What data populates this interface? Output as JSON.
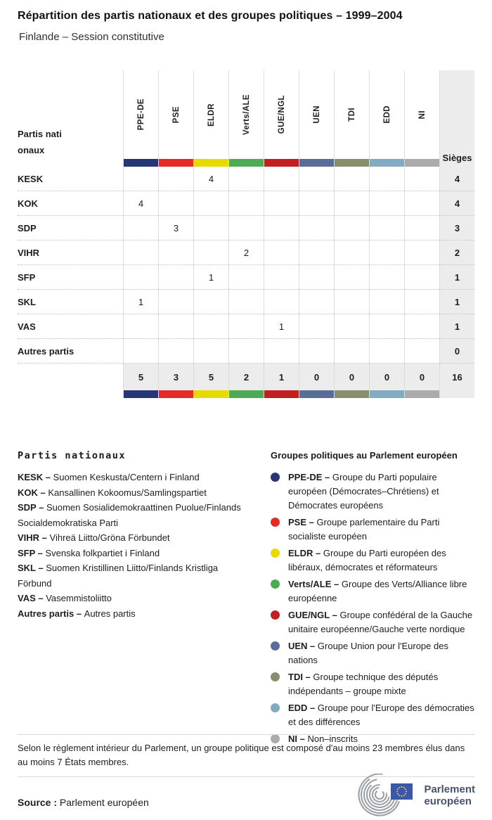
{
  "title": "Répartition des partis nationaux et des groupes politiques – 1999–2004",
  "subtitle": "Finlande – Session constitutive",
  "table": {
    "corner_label": "Partis nationaux",
    "seats_label": "Sièges",
    "groups": [
      {
        "code": "PPE-DE",
        "color": "#283577"
      },
      {
        "code": "PSE",
        "color": "#e32b28"
      },
      {
        "code": "ELDR",
        "color": "#e8da00"
      },
      {
        "code": "Verts/ALE",
        "color": "#4dab54"
      },
      {
        "code": "GUE/NGL",
        "color": "#c21f20"
      },
      {
        "code": "UEN",
        "color": "#5a6c99"
      },
      {
        "code": "TDI",
        "color": "#878d6d"
      },
      {
        "code": "EDD",
        "color": "#82aac1"
      },
      {
        "code": "NI",
        "color": "#ababab"
      }
    ],
    "rows": [
      {
        "party": "KESK",
        "values": [
          "",
          "",
          "4",
          "",
          "",
          "",
          "",
          "",
          ""
        ],
        "sieges": "4"
      },
      {
        "party": "KOK",
        "values": [
          "4",
          "",
          "",
          "",
          "",
          "",
          "",
          "",
          ""
        ],
        "sieges": "4"
      },
      {
        "party": "SDP",
        "values": [
          "",
          "3",
          "",
          "",
          "",
          "",
          "",
          "",
          ""
        ],
        "sieges": "3"
      },
      {
        "party": "VIHR",
        "values": [
          "",
          "",
          "",
          "2",
          "",
          "",
          "",
          "",
          ""
        ],
        "sieges": "2"
      },
      {
        "party": "SFP",
        "values": [
          "",
          "",
          "1",
          "",
          "",
          "",
          "",
          "",
          ""
        ],
        "sieges": "1"
      },
      {
        "party": "SKL",
        "values": [
          "1",
          "",
          "",
          "",
          "",
          "",
          "",
          "",
          ""
        ],
        "sieges": "1"
      },
      {
        "party": "VAS",
        "values": [
          "",
          "",
          "",
          "",
          "1",
          "",
          "",
          "",
          ""
        ],
        "sieges": "1"
      },
      {
        "party": "Autres partis",
        "values": [
          "",
          "",
          "",
          "",
          "",
          "",
          "",
          "",
          ""
        ],
        "sieges": "0"
      }
    ],
    "totals": {
      "values": [
        "5",
        "3",
        "5",
        "2",
        "1",
        "0",
        "0",
        "0",
        "0"
      ],
      "sieges": "16"
    }
  },
  "chart_data": {
    "type": "table",
    "title": "Répartition des partis nationaux et des groupes politiques – 1999–2004",
    "subtitle": "Finlande – Session constitutive",
    "row_labels": [
      "KESK",
      "KOK",
      "SDP",
      "VIHR",
      "SFP",
      "SKL",
      "VAS",
      "Autres partis"
    ],
    "col_labels": [
      "PPE-DE",
      "PSE",
      "ELDR",
      "Verts/ALE",
      "GUE/NGL",
      "UEN",
      "TDI",
      "EDD",
      "NI"
    ],
    "matrix": [
      [
        0,
        0,
        4,
        0,
        0,
        0,
        0,
        0,
        0
      ],
      [
        4,
        0,
        0,
        0,
        0,
        0,
        0,
        0,
        0
      ],
      [
        0,
        3,
        0,
        0,
        0,
        0,
        0,
        0,
        0
      ],
      [
        0,
        0,
        0,
        2,
        0,
        0,
        0,
        0,
        0
      ],
      [
        0,
        0,
        1,
        0,
        0,
        0,
        0,
        0,
        0
      ],
      [
        1,
        0,
        0,
        0,
        0,
        0,
        0,
        0,
        0
      ],
      [
        0,
        0,
        0,
        0,
        1,
        0,
        0,
        0,
        0
      ],
      [
        0,
        0,
        0,
        0,
        0,
        0,
        0,
        0,
        0
      ]
    ],
    "row_totals": [
      4,
      4,
      3,
      2,
      1,
      1,
      1,
      0
    ],
    "col_totals": [
      5,
      3,
      5,
      2,
      1,
      0,
      0,
      0,
      0
    ],
    "grand_total": 16
  },
  "legend_parties": {
    "heading": "Partis nationaux",
    "items": [
      {
        "label": "KESK –",
        "name": "Suomen Keskusta/Centern i Finland"
      },
      {
        "label": "KOK –",
        "name": "Kansallinen Kokoomus/Samlingspartiet"
      },
      {
        "label": "SDP –",
        "name": "Suomen Sosialidemokraattinen Puolue/Finlands Socialdemokratiska Parti"
      },
      {
        "label": "VIHR –",
        "name": "Vihreä Liitto/Gröna Förbundet"
      },
      {
        "label": "SFP –",
        "name": "Svenska folkpartiet i Finland"
      },
      {
        "label": "SKL –",
        "name": "Suomen Kristillinen Liitto/Finlands Kristliga Förbund"
      },
      {
        "label": "VAS –",
        "name": "Vasemmistoliitto"
      },
      {
        "label": "Autres partis –",
        "name": "Autres partis"
      }
    ]
  },
  "legend_groups": {
    "heading": "Groupes politiques au Parlement européen",
    "items": [
      {
        "label": "PPE-DE –",
        "color": "#283577",
        "name": "Groupe du Parti populaire européen (Démocrates–Chrétiens) et Démocrates européens"
      },
      {
        "label": "PSE –",
        "color": "#e32b28",
        "name": "Groupe parlementaire du Parti socialiste européen"
      },
      {
        "label": "ELDR –",
        "color": "#e8da00",
        "name": "Groupe du Parti européen des libéraux, démocrates et réformateurs"
      },
      {
        "label": "Verts/ALE –",
        "color": "#4dab54",
        "name": "Groupe des Verts/Alliance libre européenne"
      },
      {
        "label": "GUE/NGL –",
        "color": "#c21f20",
        "name": "Groupe confédéral de la Gauche unitaire européenne/Gauche verte nordique"
      },
      {
        "label": "UEN –",
        "color": "#5a6c99",
        "name": "Groupe Union pour l'Europe des nations"
      },
      {
        "label": "TDI –",
        "color": "#878d6d",
        "name": "Groupe technique des députés indépendants – groupe mixte"
      },
      {
        "label": "EDD –",
        "color": "#82aac1",
        "name": "Groupe pour l'Europe des démocraties et des différences"
      },
      {
        "label": "NI –",
        "color": "#ababab",
        "name": "Non–inscrits"
      }
    ]
  },
  "note": "Selon le règlement intérieur du Parlement, un groupe politique est composé d'au moins 23 membres élus dans au moins 7 États membres.",
  "source": {
    "label": "Source :",
    "value": "Parlement européen"
  },
  "logo": {
    "line1": "Parlement",
    "line2": "européen"
  }
}
